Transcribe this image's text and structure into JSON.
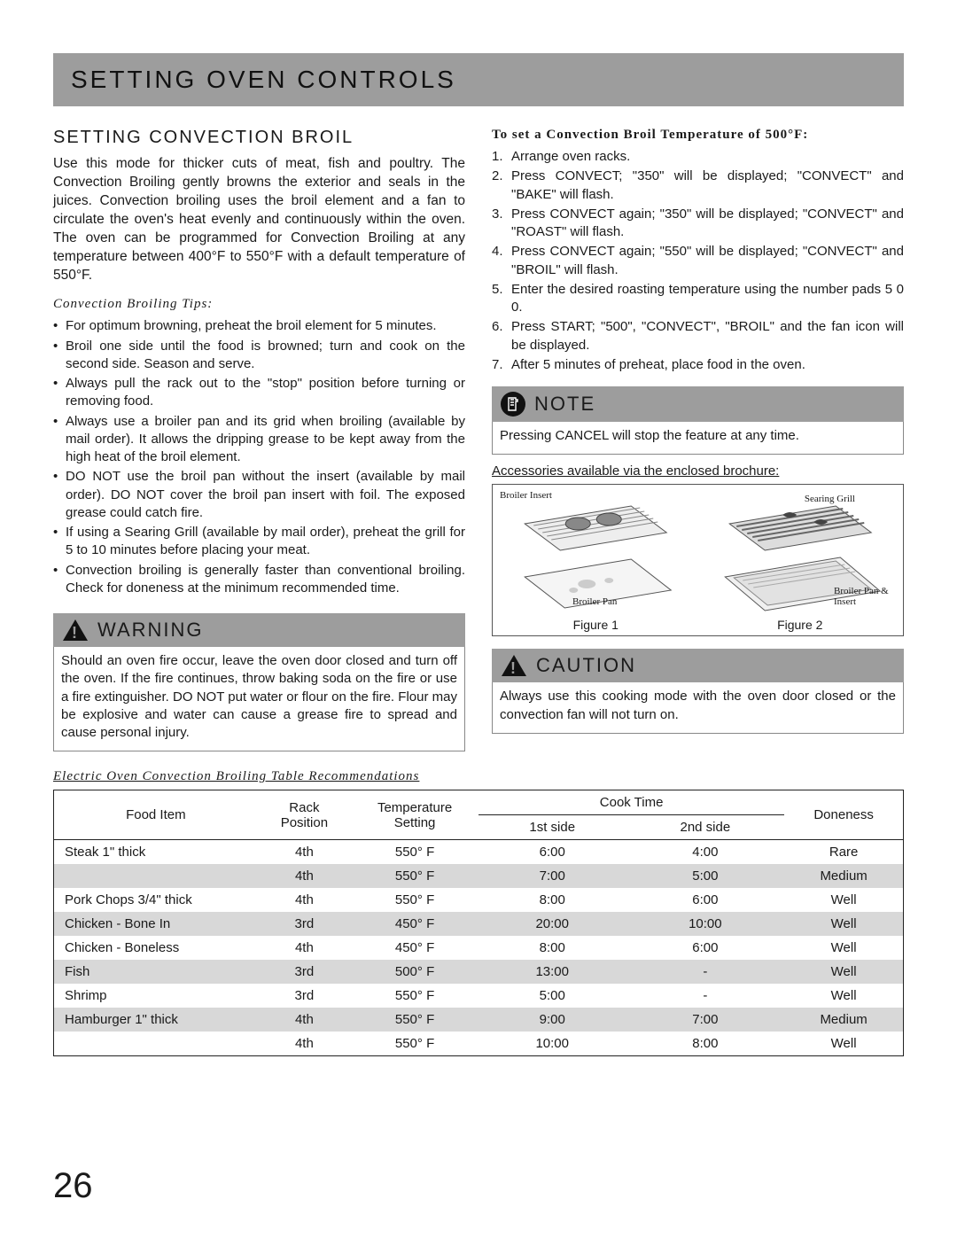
{
  "header": "SETTING OVEN CONTROLS",
  "page_number": "26",
  "left": {
    "title": "SETTING CONVECTION BROIL",
    "intro": "Use this mode for thicker cuts of meat, fish and poultry. The Convection Broiling gently browns the exterior and seals in the juices. Convection broiling uses the broil element and a fan to circulate the oven's heat evenly and continuously within the oven. The oven can be programmed for Convection Broiling at any temperature between 400°F to 550°F with a default temperature of 550°F.",
    "tips_heading": "Convection Broiling Tips:",
    "tips": [
      "For optimum browning, preheat the broil element for 5 minutes.",
      "Broil one side until the food is browned; turn and cook on the second side. Season and serve.",
      "Always pull the rack out to the \"stop\" position before turning or removing food.",
      "Always use a broiler pan and its grid when broiling (available by mail order). It allows the dripping grease to be kept away from the high heat of the broil element.",
      "DO NOT use the broil pan without the insert (available by mail order). DO NOT cover the broil pan insert with foil. The exposed grease could catch fire.",
      "If using a Searing Grill (available by mail order), preheat the grill for 5 to 10 minutes before placing your meat.",
      "Convection broiling is generally faster than conventional broiling. Check for doneness at the minimum recommended time."
    ]
  },
  "warning": {
    "label": "WARNING",
    "text": "Should an oven fire occur, leave the oven door closed and turn off the oven. If the fire continues, throw baking soda on the fire or use a fire extinguisher. DO NOT put water or flour on the fire. Flour may be explosive and water can cause a grease fire to spread and cause personal injury."
  },
  "right": {
    "set_heading": "To set a Convection Broil Temperature of 500°F:",
    "steps": [
      "Arrange oven racks.",
      "Press CONVECT; \"350\" will be displayed; \"CONVECT\" and \"BAKE\" will flash.",
      "Press CONVECT again; \"350\" will be displayed; \"CONVECT\" and \"ROAST\" will flash.",
      "Press CONVECT again; \"550\" will be displayed; \"CONVECT\" and \"BROIL\" will flash.",
      "Enter the desired roasting temperature using the number pads 5 0 0.",
      "Press START; \"500\", \"CONVECT\", \"BROIL\" and the fan icon will be displayed.",
      "After 5 minutes of preheat, place food in the oven."
    ]
  },
  "note": {
    "label": "NOTE",
    "text": "Pressing CANCEL will stop the feature at any time."
  },
  "accessories_label": "Accessories available via the enclosed brochure:",
  "fig1": {
    "label_insert": "Broiler Insert",
    "label_pan": "Broiler Pan",
    "caption": "Figure 1"
  },
  "fig2": {
    "label_grill": "Searing Grill",
    "label_combo": "Broiler Pan & Insert",
    "caption": "Figure 2"
  },
  "caution": {
    "label": "CAUTION",
    "text": "Always use this cooking mode with the oven door closed or the convection fan will not turn on."
  },
  "table": {
    "title": "Electric Oven Convection Broiling Table Recommendations",
    "columns": {
      "food": "Food Item",
      "rack": "Rack Position",
      "temp": "Temperature Setting",
      "cook": "Cook Time",
      "side1": "1st side",
      "side2": "2nd side",
      "done": "Doneness"
    },
    "rows": [
      {
        "food": "Steak 1\" thick",
        "rack": "4th",
        "temp": "550° F",
        "s1": "6:00",
        "s2": "4:00",
        "done": "Rare",
        "shade": false
      },
      {
        "food": "",
        "rack": "4th",
        "temp": "550° F",
        "s1": "7:00",
        "s2": "5:00",
        "done": "Medium",
        "shade": true
      },
      {
        "food": "Pork Chops 3/4\" thick",
        "rack": "4th",
        "temp": "550° F",
        "s1": "8:00",
        "s2": "6:00",
        "done": "Well",
        "shade": false
      },
      {
        "food": "Chicken - Bone In",
        "rack": "3rd",
        "temp": "450° F",
        "s1": "20:00",
        "s2": "10:00",
        "done": "Well",
        "shade": true
      },
      {
        "food": "Chicken - Boneless",
        "rack": "4th",
        "temp": "450° F",
        "s1": "8:00",
        "s2": "6:00",
        "done": "Well",
        "shade": false
      },
      {
        "food": "Fish",
        "rack": "3rd",
        "temp": "500° F",
        "s1": "13:00",
        "s2": "-",
        "done": "Well",
        "shade": true
      },
      {
        "food": "Shrimp",
        "rack": "3rd",
        "temp": "550° F",
        "s1": "5:00",
        "s2": "-",
        "done": "Well",
        "shade": false
      },
      {
        "food": "Hamburger 1\" thick",
        "rack": "4th",
        "temp": "550° F",
        "s1": "9:00",
        "s2": "7:00",
        "done": "Medium",
        "shade": true
      },
      {
        "food": "",
        "rack": "4th",
        "temp": "550° F",
        "s1": "10:00",
        "s2": "8:00",
        "done": "Well",
        "shade": false
      }
    ]
  }
}
